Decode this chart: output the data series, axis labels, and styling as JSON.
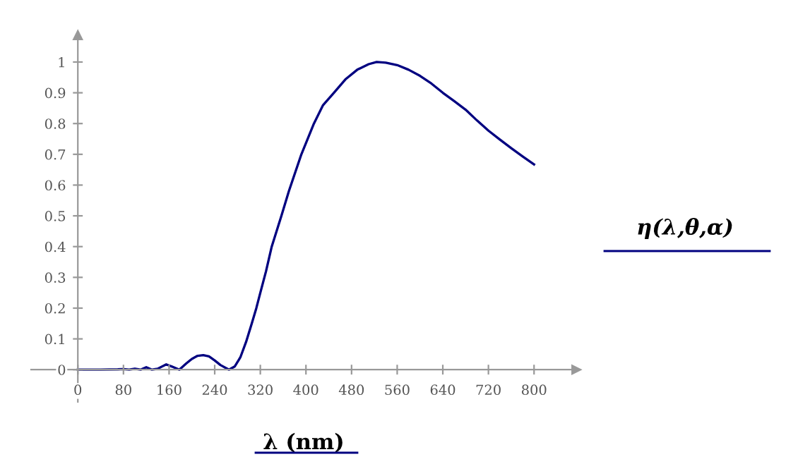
{
  "chart_data": {
    "type": "line",
    "xlabel": "λ (nm)",
    "ylabel": "η(λ,θ,α)",
    "series": [
      {
        "color": "#000080",
        "x": [
          0,
          40,
          70,
          80,
          90,
          100,
          110,
          120,
          130,
          140,
          155,
          165,
          178,
          190,
          200,
          210,
          220,
          230,
          240,
          250,
          265,
          275,
          285,
          295,
          305,
          313,
          320,
          330,
          340,
          357,
          370,
          392,
          414,
          430,
          449,
          470,
          490,
          510,
          524,
          540,
          560,
          580,
          600,
          620,
          640,
          660,
          680,
          700,
          720,
          740,
          760,
          780,
          800
        ],
        "values": [
          0,
          0,
          0.001,
          0.002,
          0,
          0.003,
          0,
          0.008,
          0,
          0.003,
          0.017,
          0.01,
          0,
          0.02,
          0.035,
          0.045,
          0.047,
          0.043,
          0.03,
          0.015,
          0,
          0.01,
          0.04,
          0.09,
          0.15,
          0.2,
          0.25,
          0.32,
          0.4,
          0.5,
          0.58,
          0.7,
          0.8,
          0.86,
          0.9,
          0.945,
          0.975,
          0.993,
          1.0,
          0.998,
          0.99,
          0.975,
          0.955,
          0.93,
          0.9,
          0.873,
          0.845,
          0.81,
          0.777,
          0.748,
          0.72,
          0.693,
          0.667
        ]
      }
    ],
    "xlim": [
      -82,
      874
    ],
    "ylim": [
      -0.105,
      1.087
    ],
    "xticks": [
      0,
      80,
      160,
      240,
      320,
      400,
      480,
      560,
      640,
      720,
      800
    ],
    "yticks": [
      0,
      0.1,
      0.2,
      0.3,
      0.4,
      0.5,
      0.6,
      0.7,
      0.8,
      0.9,
      1
    ],
    "grid": false,
    "legend": false
  }
}
